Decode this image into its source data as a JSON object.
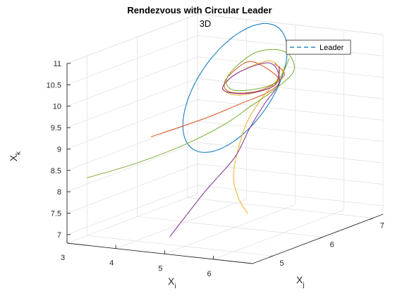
{
  "chart_data": {
    "type": "line",
    "projection": "3d",
    "title": "Rendezvous with Circular Leader",
    "subtitle": "3D",
    "axes": {
      "x": {
        "label": "X",
        "label_subscript": "i",
        "range": [
          3,
          6.8
        ],
        "ticks": [
          3,
          4,
          5,
          6
        ]
      },
      "y": {
        "label": "X",
        "label_subscript": "j",
        "range": [
          4.6,
          7.2
        ],
        "ticks": [
          5,
          6,
          7
        ]
      },
      "z": {
        "label": "X",
        "label_subscript": "k",
        "range": [
          6.8,
          11
        ],
        "ticks": [
          "7",
          "7.5",
          "8",
          "8.5",
          "9",
          "9.5",
          "10",
          "10.5",
          "11"
        ]
      }
    },
    "grid": true,
    "legend": {
      "location": "top-right",
      "entries": [
        {
          "name": "Leader",
          "style": "dashed",
          "color": "#0072BD"
        }
      ]
    },
    "leader_orbit": {
      "center": [
        4.9,
        6.1,
        10.0
      ],
      "radius": 1.1,
      "color": "#0072BD"
    },
    "series": [
      {
        "color": "#D95319",
        "points": [
          [
            4.0,
            5.3,
            9.1
          ],
          [
            4.8,
            5.6,
            9.5
          ],
          [
            5.2,
            5.9,
            9.75
          ],
          [
            5.5,
            6.2,
            9.95
          ],
          [
            5.6,
            6.3,
            10.2
          ],
          [
            5.2,
            6.3,
            10.5
          ],
          [
            4.9,
            6.3,
            10.5
          ],
          [
            4.7,
            6.1,
            10.15
          ],
          [
            4.9,
            6.0,
            9.95
          ],
          [
            5.4,
            6.1,
            10.0
          ],
          [
            5.7,
            6.3,
            10.3
          ],
          [
            5.4,
            6.4,
            10.5
          ]
        ]
      },
      {
        "color": "#EDB120",
        "points": [
          [
            6.6,
            4.7,
            7.9
          ],
          [
            6.3,
            4.8,
            8.2
          ],
          [
            5.9,
            5.1,
            8.6
          ],
          [
            5.5,
            5.7,
            9.3
          ],
          [
            5.5,
            6.0,
            9.8
          ],
          [
            5.6,
            6.3,
            10.3
          ],
          [
            5.3,
            6.4,
            10.55
          ],
          [
            4.85,
            6.2,
            10.3
          ],
          [
            4.7,
            6.05,
            10.0
          ],
          [
            5.1,
            6.0,
            9.9
          ],
          [
            5.6,
            6.2,
            10.1
          ],
          [
            5.6,
            6.4,
            10.45
          ]
        ]
      },
      {
        "color": "#7E2F8E",
        "points": [
          [
            4.9,
            4.8,
            7.1
          ],
          [
            5.1,
            5.3,
            7.95
          ],
          [
            5.3,
            5.7,
            8.6
          ],
          [
            5.4,
            5.9,
            9.2
          ],
          [
            5.5,
            6.1,
            9.7
          ],
          [
            5.6,
            6.3,
            10.15
          ],
          [
            5.3,
            6.4,
            10.5
          ],
          [
            4.85,
            6.2,
            10.3
          ],
          [
            4.75,
            6.0,
            10.0
          ],
          [
            5.2,
            6.0,
            9.95
          ],
          [
            5.6,
            6.2,
            10.1
          ],
          [
            5.5,
            6.4,
            10.45
          ]
        ]
      },
      {
        "color": "#77AC30",
        "points": [
          [
            3.0,
            5.0,
            8.15
          ],
          [
            3.8,
            5.2,
            8.5
          ],
          [
            4.5,
            5.5,
            8.9
          ],
          [
            5.0,
            5.8,
            9.3
          ],
          [
            5.3,
            6.0,
            9.65
          ],
          [
            5.6,
            6.2,
            10.0
          ],
          [
            5.8,
            6.4,
            10.4
          ],
          [
            5.5,
            6.5,
            10.75
          ],
          [
            5.0,
            6.4,
            10.7
          ],
          [
            4.75,
            6.1,
            10.25
          ],
          [
            5.0,
            6.0,
            10.0
          ],
          [
            5.6,
            6.2,
            10.15
          ],
          [
            5.6,
            6.5,
            10.6
          ]
        ]
      }
    ]
  }
}
